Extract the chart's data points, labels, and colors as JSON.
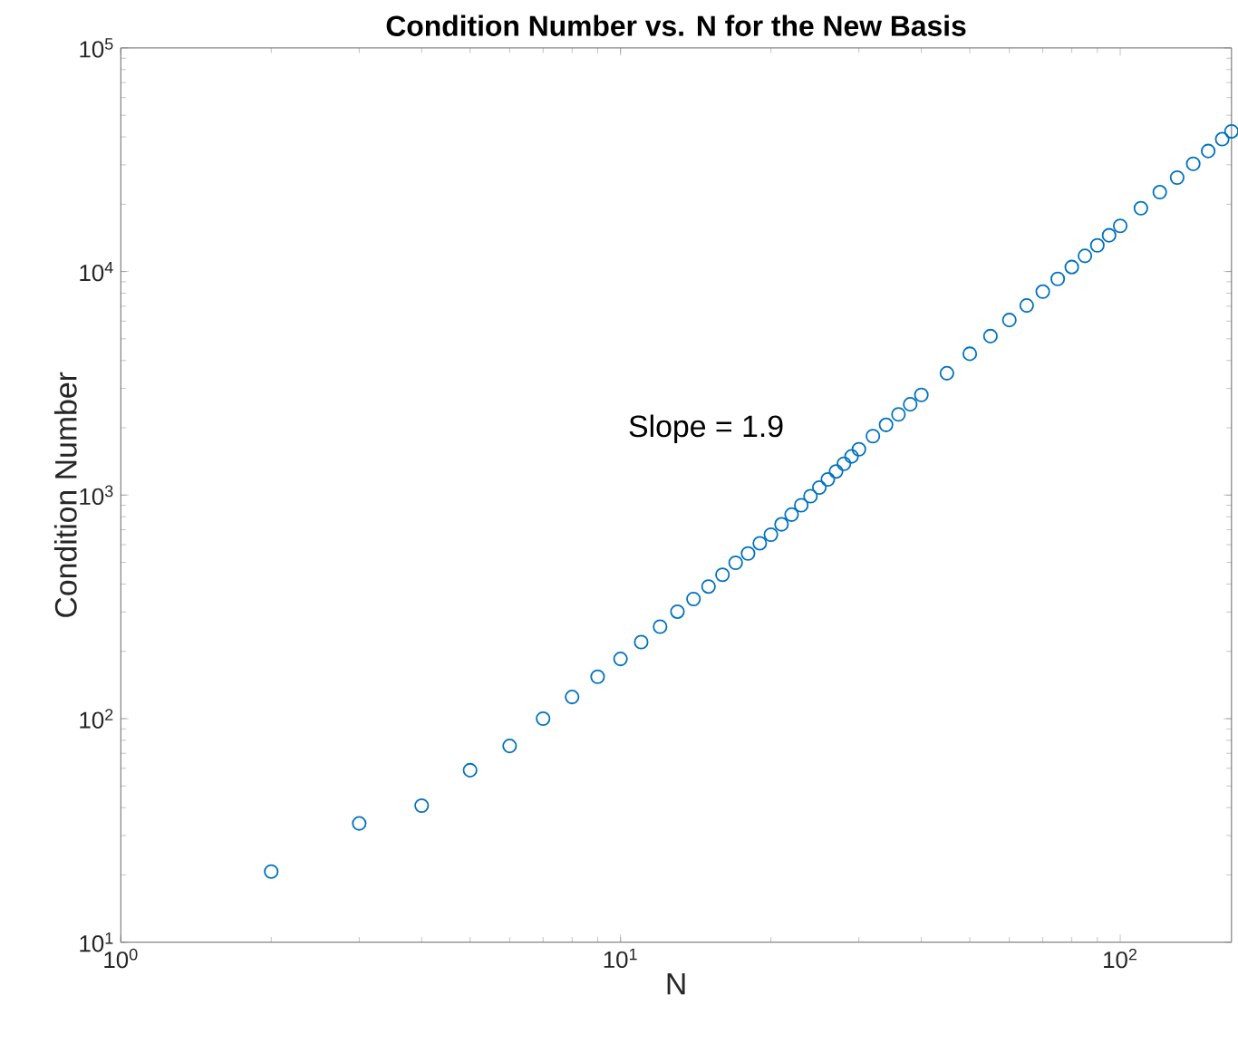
{
  "chart_data": {
    "type": "scatter",
    "title": "Condition Number vs. N for the New Basis",
    "xlabel": "N",
    "ylabel": "Condition Number",
    "log": "xy",
    "marker": "circle",
    "grid": false,
    "color": "#0072bd",
    "x": [
      2,
      3,
      4,
      5,
      6,
      7,
      8,
      9,
      10,
      11,
      12,
      13,
      14,
      15,
      16,
      17,
      18,
      19,
      20,
      21,
      22,
      23,
      24,
      25,
      26,
      27,
      28,
      29,
      30,
      32,
      34,
      36,
      38,
      40,
      45,
      50,
      55,
      60,
      65,
      70,
      75,
      80,
      85,
      90,
      95,
      100,
      110,
      120,
      130,
      140,
      150,
      160,
      167
    ],
    "values": [
      20.7,
      34,
      40.8,
      58.8,
      75.5,
      100,
      125,
      154,
      185,
      220,
      258,
      301,
      343,
      390,
      440,
      498,
      548,
      609,
      665,
      740,
      818,
      901,
      989,
      1080,
      1175,
      1276,
      1381,
      1490,
      1603,
      1836,
      2061,
      2296,
      2547,
      2806,
      3508,
      4285,
      5140,
      6067,
      7047,
      8128,
      9268,
      10470,
      11750,
      13090,
      14520,
      16000,
      19190,
      22640,
      26300,
      30330,
      34590,
      39090,
      42360
    ],
    "xlim": [
      1,
      167
    ],
    "ylim": [
      10,
      100000
    ],
    "xticks": [
      {
        "value": 1,
        "label": "10$^{0}$"
      },
      {
        "value": 10,
        "label": "10$^{1}$"
      },
      {
        "value": 100,
        "label": "10$^{2}$"
      }
    ],
    "yticks": [
      {
        "value": 10,
        "label": "10$^{1}$"
      },
      {
        "value": 100,
        "label": "10$^{2}$"
      },
      {
        "value": 1000,
        "label": "10$^{3}$"
      },
      {
        "value": 10000,
        "label": "10$^{4}$"
      },
      {
        "value": 100000,
        "label": "10$^{5}$"
      }
    ],
    "annotations": [
      "Slope = 1.9"
    ]
  }
}
